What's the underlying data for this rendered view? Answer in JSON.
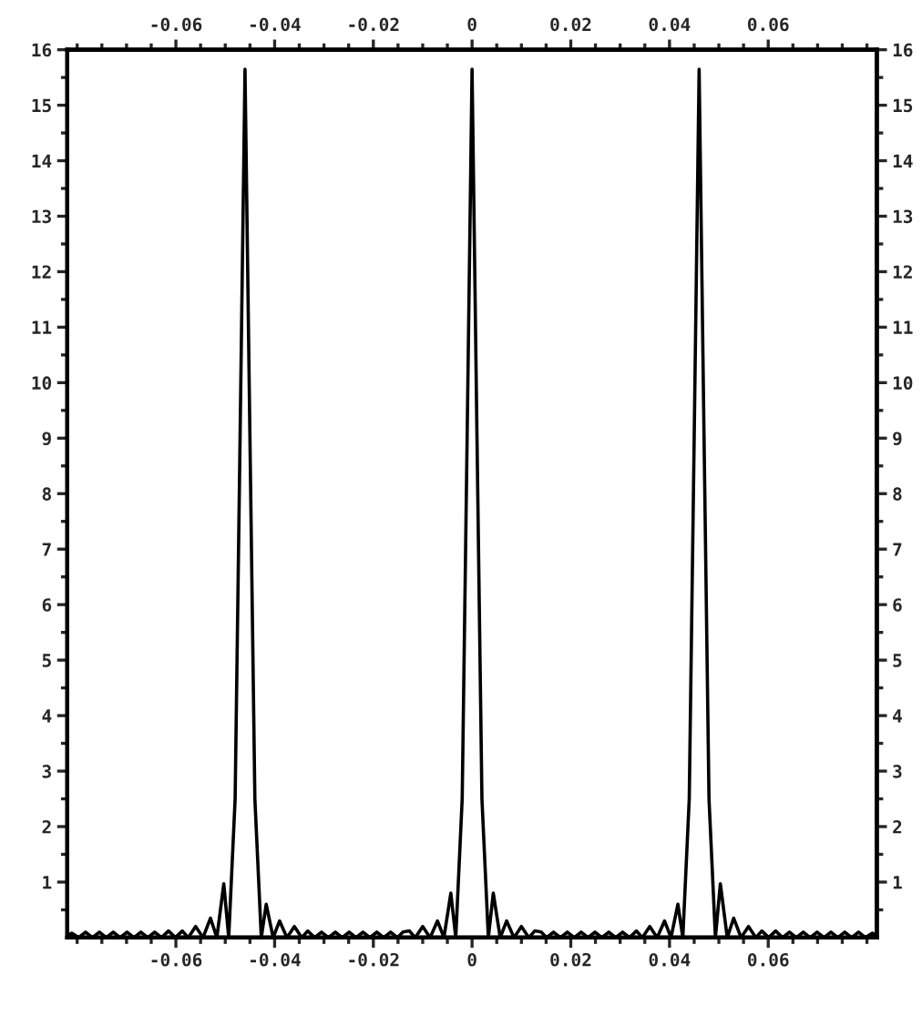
{
  "chart_data": {
    "type": "line",
    "x": [
      -0.082,
      -0.0811,
      -0.0797,
      -0.0783,
      -0.0769,
      -0.0755,
      -0.0741,
      -0.0727,
      -0.0713,
      -0.0699,
      -0.0685,
      -0.0671,
      -0.0657,
      -0.0643,
      -0.0629,
      -0.0615,
      -0.0601,
      -0.0587,
      -0.0575,
      -0.056,
      -0.0545,
      -0.053,
      -0.0517,
      -0.0503,
      -0.0493,
      -0.048,
      -0.047,
      -0.046,
      -0.045,
      -0.044,
      -0.0427,
      -0.0417,
      -0.0403,
      -0.039,
      -0.0375,
      -0.036,
      -0.0345,
      -0.0333,
      -0.0319,
      -0.0305,
      -0.0291,
      -0.0277,
      -0.0263,
      -0.0249,
      -0.0235,
      -0.0221,
      -0.0207,
      -0.0193,
      -0.0179,
      -0.0165,
      -0.0151,
      -0.014,
      -0.0127,
      -0.0115,
      -0.01,
      -0.0085,
      -0.007,
      -0.0057,
      -0.0043,
      -0.0033,
      -0.002,
      -0.001,
      0,
      0.001,
      0.002,
      0.0033,
      0.0043,
      0.0057,
      0.007,
      0.0085,
      0.01,
      0.0115,
      0.0127,
      0.014,
      0.0151,
      0.0165,
      0.0179,
      0.0193,
      0.0207,
      0.0221,
      0.0235,
      0.0249,
      0.0263,
      0.0277,
      0.0291,
      0.0305,
      0.0319,
      0.0333,
      0.0345,
      0.036,
      0.0375,
      0.039,
      0.0403,
      0.0417,
      0.0427,
      0.044,
      0.045,
      0.046,
      0.047,
      0.048,
      0.0493,
      0.0503,
      0.0517,
      0.053,
      0.0545,
      0.056,
      0.0575,
      0.0587,
      0.0601,
      0.0615,
      0.0629,
      0.0643,
      0.0657,
      0.0671,
      0.0685,
      0.0699,
      0.0713,
      0.0727,
      0.0741,
      0.0755,
      0.0769,
      0.0783,
      0.0797,
      0.0811,
      0.082
    ],
    "series": [
      {
        "color": "#000000",
        "values": [
          0.03,
          0.08,
          0,
          0.1,
          0,
          0.1,
          0,
          0.1,
          0,
          0.1,
          0,
          0.1,
          0,
          0.1,
          0,
          0.12,
          0,
          0.12,
          0,
          0.2,
          0,
          0.35,
          0,
          0.97,
          0,
          2.5,
          9,
          15.65,
          9,
          2.5,
          0,
          0.6,
          0,
          0.3,
          0,
          0.2,
          0,
          0.12,
          0,
          0.1,
          0,
          0.1,
          0,
          0.1,
          0,
          0.1,
          0,
          0.1,
          0,
          0.1,
          0,
          0.1,
          0.12,
          0,
          0.2,
          0,
          0.3,
          0,
          0.8,
          0,
          2.5,
          9,
          15.65,
          9,
          2.5,
          0,
          0.8,
          0,
          0.3,
          0,
          0.2,
          0,
          0.12,
          0.1,
          0,
          0.1,
          0,
          0.1,
          0,
          0.1,
          0,
          0.1,
          0,
          0.1,
          0,
          0.1,
          0,
          0.12,
          0,
          0.2,
          0,
          0.3,
          0,
          0.6,
          0,
          2.5,
          9,
          15.65,
          9,
          2.5,
          0,
          0.97,
          0,
          0.35,
          0,
          0.2,
          0,
          0.12,
          0,
          0.12,
          0,
          0.1,
          0,
          0.1,
          0,
          0.1,
          0,
          0.1,
          0,
          0.1,
          0,
          0.1,
          0,
          0.08,
          0.03
        ]
      }
    ],
    "xlim": [
      -0.082,
      0.082
    ],
    "xticks": [
      {
        "value": -0.08,
        "label": null
      },
      {
        "value": -0.075,
        "label": null
      },
      {
        "value": -0.07,
        "label": null
      },
      {
        "value": -0.065,
        "label": null
      },
      -0.06,
      {
        "value": -0.055,
        "label": null
      },
      {
        "value": -0.05,
        "label": null
      },
      {
        "value": -0.045,
        "label": null
      },
      -0.04,
      {
        "value": -0.035,
        "label": null
      },
      {
        "value": -0.03,
        "label": null
      },
      {
        "value": -0.025,
        "label": null
      },
      -0.02,
      {
        "value": -0.015,
        "label": null
      },
      {
        "value": -0.01,
        "label": null
      },
      {
        "value": -0.005,
        "label": null
      },
      0,
      {
        "value": 0.005,
        "label": null
      },
      {
        "value": 0.01,
        "label": null
      },
      {
        "value": 0.015,
        "label": null
      },
      0.02,
      {
        "value": 0.025,
        "label": null
      },
      {
        "value": 0.03,
        "label": null
      },
      {
        "value": 0.035,
        "label": null
      },
      0.04,
      {
        "value": 0.045,
        "label": null
      },
      {
        "value": 0.05,
        "label": null
      },
      {
        "value": 0.055,
        "label": null
      },
      0.06,
      {
        "value": 0.065,
        "label": null
      },
      {
        "value": 0.07,
        "label": null
      },
      {
        "value": 0.075,
        "label": null
      },
      {
        "value": 0.08,
        "label": null
      }
    ],
    "x2lim": [
      -0.082,
      0.082
    ],
    "x2ticks": [
      {
        "value": -0.08,
        "label": null
      },
      {
        "value": -0.075,
        "label": null
      },
      {
        "value": -0.07,
        "label": null
      },
      {
        "value": -0.065,
        "label": null
      },
      -0.06,
      {
        "value": -0.055,
        "label": null
      },
      {
        "value": -0.05,
        "label": null
      },
      {
        "value": -0.045,
        "label": null
      },
      -0.04,
      {
        "value": -0.035,
        "label": null
      },
      {
        "value": -0.03,
        "label": null
      },
      {
        "value": -0.025,
        "label": null
      },
      -0.02,
      {
        "value": -0.015,
        "label": null
      },
      {
        "value": -0.01,
        "label": null
      },
      {
        "value": -0.005,
        "label": null
      },
      0,
      {
        "value": 0.005,
        "label": null
      },
      {
        "value": 0.01,
        "label": null
      },
      {
        "value": 0.015,
        "label": null
      },
      0.02,
      {
        "value": 0.025,
        "label": null
      },
      {
        "value": 0.03,
        "label": null
      },
      {
        "value": 0.035,
        "label": null
      },
      0.04,
      {
        "value": 0.045,
        "label": null
      },
      {
        "value": 0.05,
        "label": null
      },
      {
        "value": 0.055,
        "label": null
      },
      0.06,
      {
        "value": 0.065,
        "label": null
      },
      {
        "value": 0.07,
        "label": null
      },
      {
        "value": 0.075,
        "label": null
      },
      {
        "value": 0.08,
        "label": null
      }
    ],
    "ylim": [
      0,
      16
    ],
    "yticks": [
      {
        "value": 0.5,
        "label": null
      },
      1,
      {
        "value": 1.5,
        "label": null
      },
      2,
      {
        "value": 2.5,
        "label": null
      },
      3,
      {
        "value": 3.5,
        "label": null
      },
      4,
      {
        "value": 4.5,
        "label": null
      },
      5,
      {
        "value": 5.5,
        "label": null
      },
      6,
      {
        "value": 6.5,
        "label": null
      },
      7,
      {
        "value": 7.5,
        "label": null
      },
      8,
      {
        "value": 8.5,
        "label": null
      },
      9,
      {
        "value": 9.5,
        "label": null
      },
      10,
      {
        "value": 10.5,
        "label": null
      },
      11,
      {
        "value": 11.5,
        "label": null
      },
      12,
      {
        "value": 12.5,
        "label": null
      },
      13,
      {
        "value": 13.5,
        "label": null
      },
      14,
      {
        "value": 14.5,
        "label": null
      },
      15,
      {
        "value": 15.5,
        "label": null
      },
      16
    ],
    "y2lim": [
      0,
      16
    ],
    "y2ticks": [
      {
        "value": 0.5,
        "label": null
      },
      1,
      {
        "value": 1.5,
        "label": null
      },
      2,
      {
        "value": 2.5,
        "label": null
      },
      3,
      {
        "value": 3.5,
        "label": null
      },
      4,
      {
        "value": 4.5,
        "label": null
      },
      5,
      {
        "value": 5.5,
        "label": null
      },
      6,
      {
        "value": 6.5,
        "label": null
      },
      7,
      {
        "value": 7.5,
        "label": null
      },
      8,
      {
        "value": 8.5,
        "label": null
      },
      9,
      {
        "value": 9.5,
        "label": null
      },
      10,
      {
        "value": 10.5,
        "label": null
      },
      11,
      {
        "value": 11.5,
        "label": null
      },
      12,
      {
        "value": 12.5,
        "label": null
      },
      13,
      {
        "value": 13.5,
        "label": null
      },
      14,
      {
        "value": 14.5,
        "label": null
      },
      15,
      {
        "value": 15.5,
        "label": null
      },
      16
    ],
    "grid": false,
    "legend": false,
    "marker": "none",
    "line_style": "solid"
  }
}
